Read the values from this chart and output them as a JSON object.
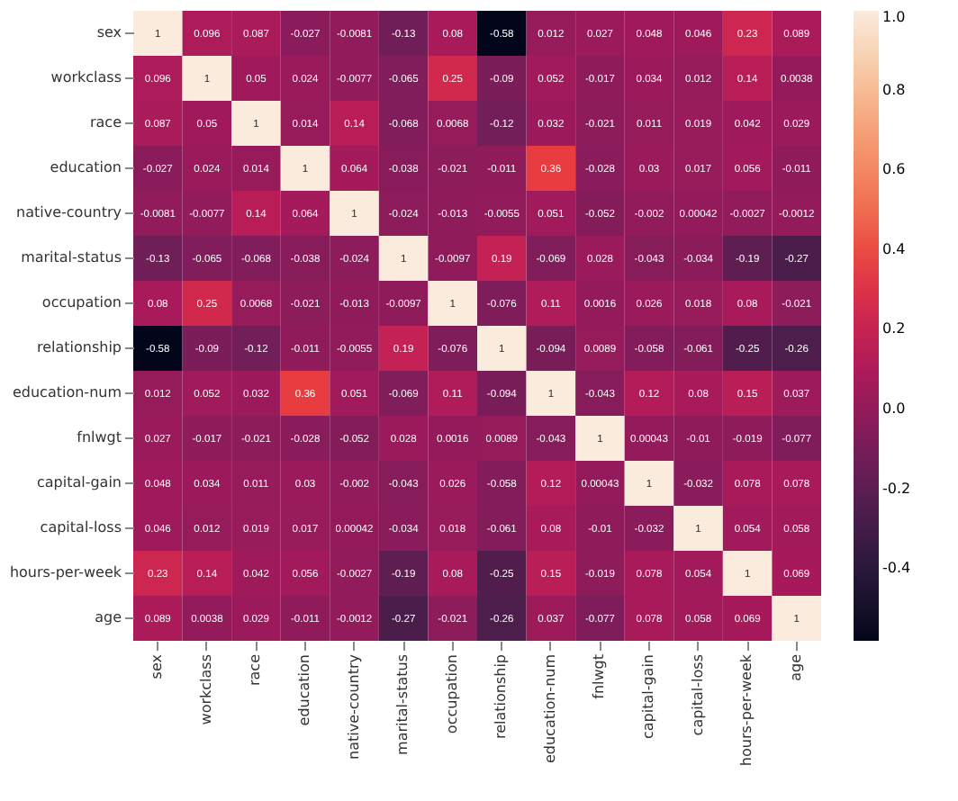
{
  "chart_data": {
    "type": "heatmap",
    "categories": [
      "sex",
      "workclass",
      "race",
      "education",
      "native-country",
      "marital-status",
      "occupation",
      "relationship",
      "education-num",
      "fnlwgt",
      "capital-gain",
      "capital-loss",
      "hours-per-week",
      "age"
    ],
    "y_categories": [
      "sex",
      "workclass",
      "race",
      "education",
      "native-country",
      "marital-status",
      "occupation",
      "relationship",
      "education-num",
      "fnlwgt",
      "capital-gain",
      "capital-loss",
      "hours-per-week",
      "age"
    ],
    "cells": [
      [
        1,
        0.096,
        0.087,
        -0.027,
        -0.0081,
        -0.13,
        0.08,
        -0.58,
        0.012,
        0.027,
        0.048,
        0.046,
        0.23,
        0.089
      ],
      [
        0.096,
        1,
        0.05,
        0.024,
        -0.0077,
        -0.065,
        0.25,
        -0.09,
        0.052,
        -0.017,
        0.034,
        0.012,
        0.14,
        0.0038
      ],
      [
        0.087,
        0.05,
        1,
        0.014,
        0.14,
        -0.068,
        0.0068,
        -0.12,
        0.032,
        -0.021,
        0.011,
        0.019,
        0.042,
        0.029
      ],
      [
        -0.027,
        0.024,
        0.014,
        1,
        0.064,
        -0.038,
        -0.021,
        -0.011,
        0.36,
        -0.028,
        0.03,
        0.017,
        0.056,
        -0.011
      ],
      [
        -0.0081,
        -0.0077,
        0.14,
        0.064,
        1,
        -0.024,
        -0.013,
        -0.0055,
        0.051,
        -0.052,
        -0.002,
        0.00042,
        -0.0027,
        -0.0012
      ],
      [
        -0.13,
        -0.065,
        -0.068,
        -0.038,
        -0.024,
        1,
        -0.0097,
        0.19,
        -0.069,
        0.028,
        -0.043,
        -0.034,
        -0.19,
        -0.27
      ],
      [
        0.08,
        0.25,
        0.0068,
        -0.021,
        -0.013,
        -0.0097,
        1,
        -0.076,
        0.11,
        0.0016,
        0.026,
        0.018,
        0.08,
        -0.021
      ],
      [
        -0.58,
        -0.09,
        -0.12,
        -0.011,
        -0.0055,
        0.19,
        -0.076,
        1,
        -0.094,
        0.0089,
        -0.058,
        -0.061,
        -0.25,
        -0.26
      ],
      [
        0.012,
        0.052,
        0.032,
        0.36,
        0.051,
        -0.069,
        0.11,
        -0.094,
        1,
        -0.043,
        0.12,
        0.08,
        0.15,
        0.037
      ],
      [
        0.027,
        -0.017,
        -0.021,
        -0.028,
        -0.052,
        0.028,
        0.0016,
        0.0089,
        -0.043,
        1,
        0.00043,
        -0.01,
        -0.019,
        -0.077
      ],
      [
        0.048,
        0.034,
        0.011,
        0.03,
        -0.002,
        -0.043,
        0.026,
        -0.058,
        0.12,
        0.00043,
        1,
        -0.032,
        0.078,
        0.078
      ],
      [
        0.046,
        0.012,
        0.019,
        0.017,
        0.00042,
        -0.034,
        0.018,
        -0.061,
        0.08,
        -0.01,
        -0.032,
        1,
        0.054,
        0.058
      ],
      [
        0.23,
        0.14,
        0.042,
        0.056,
        -0.0027,
        -0.19,
        0.08,
        -0.25,
        0.15,
        -0.019,
        0.078,
        0.054,
        1,
        0.069
      ],
      [
        0.089,
        0.0038,
        0.029,
        -0.011,
        -0.0012,
        -0.27,
        -0.021,
        -0.26,
        0.037,
        -0.077,
        0.078,
        0.058,
        0.069,
        1
      ]
    ],
    "clim": [
      -0.58,
      1
    ],
    "cticks": [
      {
        "value": 1,
        "label": "1.0"
      },
      {
        "value": 0.8,
        "label": "0.8"
      },
      {
        "value": 0.6,
        "label": "0.6"
      },
      {
        "value": 0.4,
        "label": "0.4"
      },
      {
        "value": 0.2,
        "label": "0.2"
      },
      {
        "value": 0,
        "label": "0.0"
      },
      {
        "value": -0.2,
        "label": "-0.2"
      },
      {
        "value": -0.4,
        "label": "-0.4"
      }
    ],
    "data_labels": true
  }
}
